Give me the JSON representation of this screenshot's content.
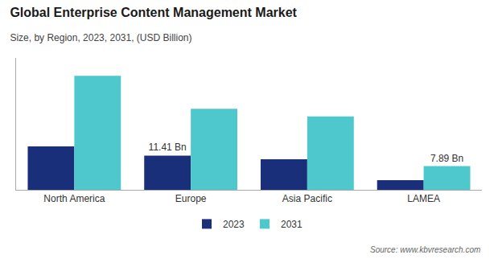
{
  "chart_data": {
    "type": "bar",
    "title": "Global Enterprise Content Management Market",
    "subtitle": "Size, by Region, 2023, 2031, (USD Billion)",
    "source": "Source: www.kbvresearch.com",
    "categories": [
      "North America",
      "Europe",
      "Asia Pacific",
      "LAMEA"
    ],
    "series": [
      {
        "name": "2023",
        "color": "#1a2f7a",
        "values": [
          14.5,
          11.41,
          10.2,
          3.2
        ]
      },
      {
        "name": "2031",
        "color": "#4ec8cc",
        "values": [
          38.0,
          27.0,
          24.5,
          7.89
        ]
      }
    ],
    "annotations": [
      {
        "text": "11.41 Bn",
        "category": "Europe",
        "series": "2023"
      },
      {
        "text": "7.89 Bn",
        "category": "LAMEA",
        "series": "2031"
      }
    ],
    "ylim": [
      0,
      44
    ],
    "grid": false,
    "legend": "bottom",
    "tick_labels": "x"
  }
}
